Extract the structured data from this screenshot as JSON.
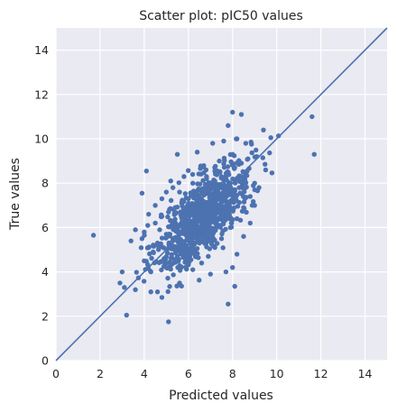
{
  "chart_data": {
    "type": "scatter",
    "title": "Scatter plot: pIC50 values",
    "xlabel": "Predicted values",
    "ylabel": "True values",
    "xlim": [
      0,
      15
    ],
    "ylim": [
      0,
      15
    ],
    "xticks": [
      0,
      2,
      4,
      6,
      8,
      10,
      12,
      14
    ],
    "yticks": [
      0,
      2,
      4,
      6,
      8,
      10,
      12,
      14
    ],
    "grid": true,
    "background_color": "#eaeaf2",
    "point_color": "#4c72b0",
    "reference_line": {
      "type": "identity",
      "from": [
        0,
        0
      ],
      "to": [
        15,
        15
      ],
      "color": "#4c72b0"
    },
    "points": [
      [
        1.7,
        5.65
      ],
      [
        3.2,
        2.05
      ],
      [
        5.1,
        1.75
      ],
      [
        7.8,
        2.55
      ],
      [
        8.1,
        3.35
      ],
      [
        11.6,
        11.0
      ],
      [
        11.7,
        9.3
      ],
      [
        8.0,
        11.2
      ],
      [
        8.4,
        11.1
      ],
      [
        9.4,
        10.4
      ],
      [
        7.8,
        10.6
      ],
      [
        4.1,
        8.55
      ],
      [
        3.9,
        7.55
      ],
      [
        3.0,
        4.0
      ],
      [
        2.9,
        3.5
      ],
      [
        3.1,
        3.3
      ],
      [
        3.6,
        3.2
      ],
      [
        4.3,
        3.1
      ],
      [
        4.6,
        3.1
      ],
      [
        4.8,
        2.85
      ],
      [
        5.6,
        3.5
      ],
      [
        6.2,
        4.1
      ],
      [
        3.6,
        5.9
      ],
      [
        3.4,
        5.4
      ],
      [
        3.9,
        5.5
      ],
      [
        4.3,
        4.0
      ],
      [
        4.0,
        4.5
      ],
      [
        4.8,
        7.3
      ],
      [
        5.2,
        8.1
      ],
      [
        5.3,
        7.8
      ],
      [
        5.8,
        8.3
      ],
      [
        5.5,
        9.3
      ],
      [
        6.4,
        9.4
      ],
      [
        7.1,
        9.8
      ],
      [
        7.6,
        9.9
      ],
      [
        8.2,
        10.0
      ],
      [
        8.6,
        9.8
      ],
      [
        9.1,
        9.2
      ],
      [
        9.5,
        8.6
      ],
      [
        9.2,
        7.8
      ],
      [
        9.0,
        7.0
      ],
      [
        8.8,
        6.2
      ],
      [
        8.5,
        5.6
      ],
      [
        8.2,
        4.8
      ],
      [
        8.0,
        4.2
      ],
      [
        7.7,
        4.0
      ],
      [
        7.0,
        3.9
      ],
      [
        6.6,
        4.4
      ],
      [
        6.3,
        4.8
      ],
      [
        5.9,
        4.9
      ],
      [
        5.6,
        5.2
      ],
      [
        5.3,
        5.5
      ],
      [
        5.0,
        5.7
      ],
      [
        4.7,
        5.9
      ],
      [
        4.5,
        6.2
      ],
      [
        4.8,
        6.5
      ],
      [
        5.1,
        6.7
      ],
      [
        5.4,
        6.9
      ],
      [
        5.7,
        7.1
      ],
      [
        6.0,
        7.3
      ],
      [
        6.3,
        7.5
      ],
      [
        6.6,
        7.7
      ],
      [
        6.9,
        7.9
      ],
      [
        7.2,
        8.1
      ],
      [
        7.5,
        8.3
      ],
      [
        7.8,
        8.5
      ],
      [
        8.1,
        8.7
      ],
      [
        8.4,
        8.9
      ],
      [
        8.7,
        9.1
      ],
      [
        6.5,
        6.0
      ],
      [
        6.8,
        6.3
      ],
      [
        7.1,
        6.6
      ],
      [
        7.4,
        6.9
      ],
      [
        7.7,
        7.2
      ],
      [
        8.0,
        7.5
      ],
      [
        8.3,
        7.8
      ],
      [
        6.2,
        5.6
      ],
      [
        5.9,
        5.9
      ],
      [
        6.7,
        6.8
      ],
      [
        7.3,
        7.4
      ],
      [
        7.0,
        7.0
      ],
      [
        6.4,
        6.5
      ],
      [
        5.7,
        6.2
      ],
      [
        5.5,
        5.8
      ],
      [
        6.1,
        6.9
      ],
      [
        7.6,
        7.7
      ],
      [
        7.9,
        8.0
      ],
      [
        8.2,
        8.2
      ],
      [
        4.4,
        4.9
      ],
      [
        4.6,
        5.3
      ],
      [
        4.9,
        4.6
      ],
      [
        5.2,
        4.4
      ],
      [
        5.5,
        4.7
      ],
      [
        5.8,
        5.0
      ],
      [
        4.2,
        5.1
      ],
      [
        4.0,
        5.8
      ],
      [
        4.2,
        6.6
      ],
      [
        4.5,
        7.0
      ],
      [
        5.0,
        7.6
      ],
      [
        5.6,
        7.6
      ],
      [
        6.2,
        8.0
      ],
      [
        6.8,
        8.6
      ],
      [
        7.4,
        9.0
      ],
      [
        8.0,
        9.3
      ],
      [
        8.6,
        8.4
      ],
      [
        9.0,
        8.0
      ],
      [
        8.8,
        7.4
      ],
      [
        8.5,
        6.9
      ],
      [
        8.2,
        6.4
      ],
      [
        7.9,
        6.0
      ],
      [
        7.5,
        5.5
      ],
      [
        7.2,
        5.1
      ],
      [
        6.9,
        4.7
      ],
      [
        6.5,
        5.3
      ],
      [
        6.9,
        5.6
      ]
    ]
  }
}
